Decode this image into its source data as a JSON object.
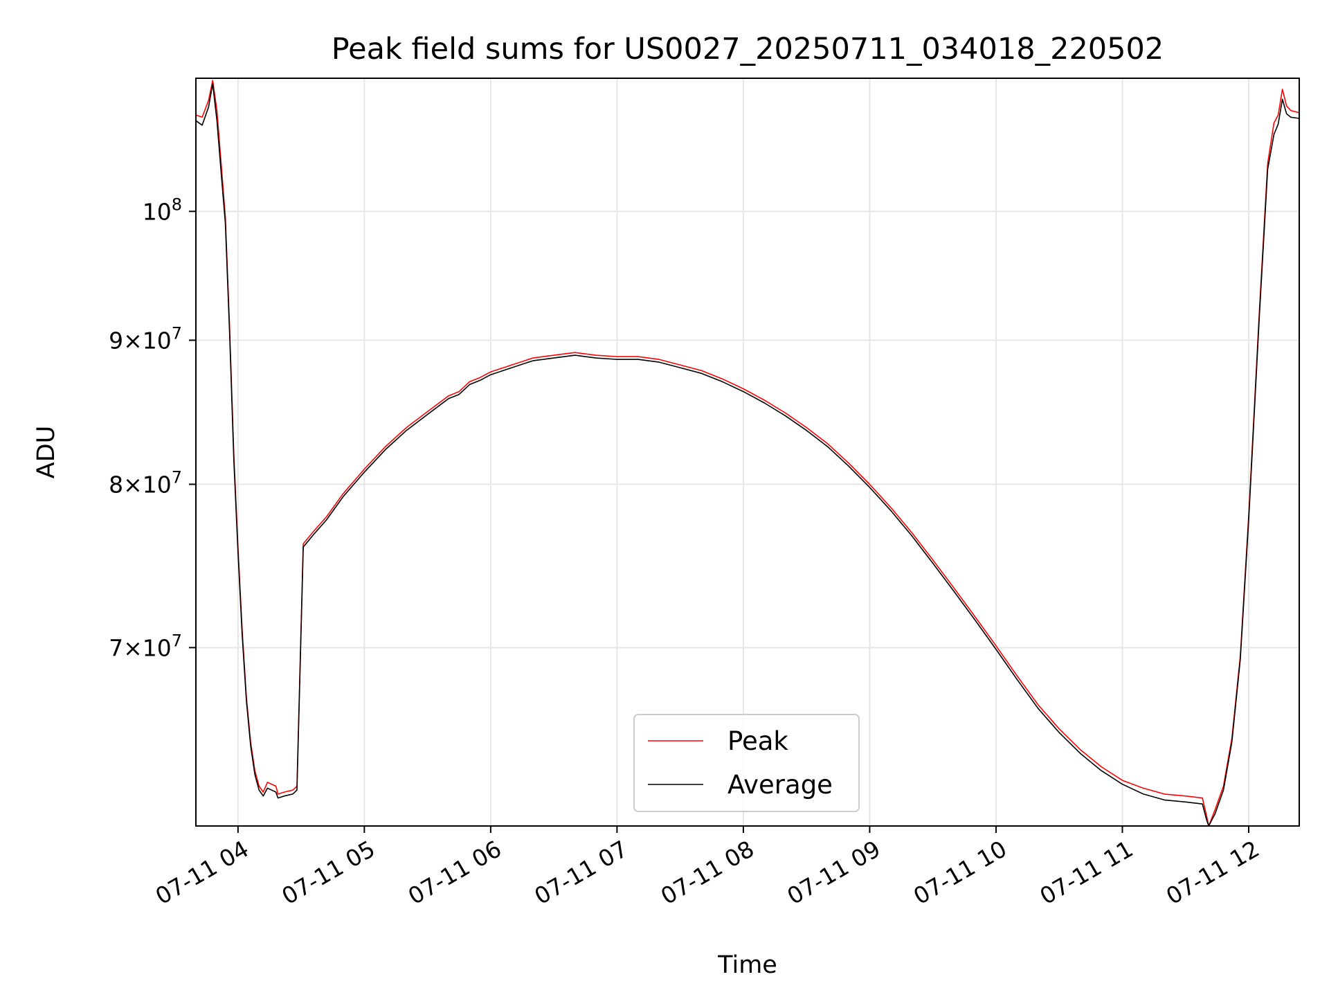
{
  "chart_data": {
    "type": "line",
    "title": "Peak field sums for US0027_20250711_034018_220502",
    "xlabel": "Time",
    "ylabel": "ADU",
    "y_scale": "log",
    "x_range": [
      "07-11 03:40",
      "07-11 12:24"
    ],
    "ylim": [
      60500000,
      111500000
    ],
    "grid": true,
    "legend_placement": "bottom-center",
    "x_ticks": [
      {
        "time": "07-11 04:00",
        "label": "07-11 04"
      },
      {
        "time": "07-11 05:00",
        "label": "07-11 05"
      },
      {
        "time": "07-11 06:00",
        "label": "07-11 06"
      },
      {
        "time": "07-11 07:00",
        "label": "07-11 07"
      },
      {
        "time": "07-11 08:00",
        "label": "07-11 08"
      },
      {
        "time": "07-11 09:00",
        "label": "07-11 09"
      },
      {
        "time": "07-11 10:00",
        "label": "07-11 10"
      },
      {
        "time": "07-11 11:00",
        "label": "07-11 11"
      },
      {
        "time": "07-11 12:00",
        "label": "07-11 12"
      }
    ],
    "y_ticks": [
      {
        "value": 70000000,
        "mantissa": "7",
        "base": "10",
        "exp": "7"
      },
      {
        "value": 80000000,
        "mantissa": "8",
        "base": "10",
        "exp": "7"
      },
      {
        "value": 90000000,
        "mantissa": "9",
        "base": "10",
        "exp": "7"
      },
      {
        "value": 100000000,
        "mantissa": "",
        "base": "10",
        "exp": "8"
      }
    ],
    "series": [
      {
        "name": "Peak",
        "color": "#ff0000",
        "points": [
          [
            "07-11 03:40",
            108200000
          ],
          [
            "07-11 03:43",
            108000000
          ],
          [
            "07-11 03:46",
            109500000
          ],
          [
            "07-11 03:48",
            111300000
          ],
          [
            "07-11 03:50",
            108600000
          ],
          [
            "07-11 03:52",
            104000000
          ],
          [
            "07-11 03:54",
            99500000
          ],
          [
            "07-11 03:56",
            91000000
          ],
          [
            "07-11 03:58",
            82000000
          ],
          [
            "07-11 04:00",
            76000000
          ],
          [
            "07-11 04:02",
            71000000
          ],
          [
            "07-11 04:04",
            67200000
          ],
          [
            "07-11 04:06",
            64800000
          ],
          [
            "07-11 04:08",
            63300000
          ],
          [
            "07-11 04:10",
            62500000
          ],
          [
            "07-11 04:12",
            62200000
          ],
          [
            "07-11 04:14",
            62700000
          ],
          [
            "07-11 04:16",
            62600000
          ],
          [
            "07-11 04:18",
            62500000
          ],
          [
            "07-11 04:19",
            62100000
          ],
          [
            "07-11 04:22",
            62200000
          ],
          [
            "07-11 04:26",
            62300000
          ],
          [
            "07-11 04:28",
            62500000
          ],
          [
            "07-11 04:31",
            76200000
          ],
          [
            "07-11 04:36",
            77000000
          ],
          [
            "07-11 04:42",
            77900000
          ],
          [
            "07-11 04:50",
            79400000
          ],
          [
            "07-11 05:00",
            81000000
          ],
          [
            "07-11 05:10",
            82500000
          ],
          [
            "07-11 05:20",
            83800000
          ],
          [
            "07-11 05:30",
            84900000
          ],
          [
            "07-11 05:40",
            86000000
          ],
          [
            "07-11 05:45",
            86300000
          ],
          [
            "07-11 05:50",
            87000000
          ],
          [
            "07-11 05:55",
            87300000
          ],
          [
            "07-11 06:00",
            87700000
          ],
          [
            "07-11 06:10",
            88200000
          ],
          [
            "07-11 06:20",
            88700000
          ],
          [
            "07-11 06:30",
            88900000
          ],
          [
            "07-11 06:40",
            89100000
          ],
          [
            "07-11 06:50",
            88900000
          ],
          [
            "07-11 07:00",
            88800000
          ],
          [
            "07-11 07:10",
            88800000
          ],
          [
            "07-11 07:20",
            88600000
          ],
          [
            "07-11 07:30",
            88200000
          ],
          [
            "07-11 07:40",
            87800000
          ],
          [
            "07-11 07:50",
            87200000
          ],
          [
            "07-11 08:00",
            86500000
          ],
          [
            "07-11 08:10",
            85700000
          ],
          [
            "07-11 08:20",
            84800000
          ],
          [
            "07-11 08:30",
            83800000
          ],
          [
            "07-11 08:40",
            82700000
          ],
          [
            "07-11 08:50",
            81400000
          ],
          [
            "07-11 09:00",
            80000000
          ],
          [
            "07-11 09:10",
            78500000
          ],
          [
            "07-11 09:20",
            76900000
          ],
          [
            "07-11 09:30",
            75200000
          ],
          [
            "07-11 09:40",
            73500000
          ],
          [
            "07-11 09:50",
            71800000
          ],
          [
            "07-11 10:00",
            70100000
          ],
          [
            "07-11 10:10",
            68400000
          ],
          [
            "07-11 10:20",
            66800000
          ],
          [
            "07-11 10:30",
            65500000
          ],
          [
            "07-11 10:40",
            64400000
          ],
          [
            "07-11 10:50",
            63500000
          ],
          [
            "07-11 11:00",
            62800000
          ],
          [
            "07-11 11:10",
            62400000
          ],
          [
            "07-11 11:20",
            62100000
          ],
          [
            "07-11 11:30",
            62000000
          ],
          [
            "07-11 11:38",
            61900000
          ],
          [
            "07-11 11:40",
            61000000
          ],
          [
            "07-11 11:41",
            60500000
          ],
          [
            "07-11 11:44",
            61300000
          ],
          [
            "07-11 11:48",
            62500000
          ],
          [
            "07-11 11:52",
            65000000
          ],
          [
            "07-11 11:56",
            69500000
          ],
          [
            "07-11 12:00",
            78000000
          ],
          [
            "07-11 12:05",
            92000000
          ],
          [
            "07-11 12:09",
            104000000
          ],
          [
            "07-11 12:12",
            107500000
          ],
          [
            "07-11 12:14",
            108200000
          ],
          [
            "07-11 12:16",
            110500000
          ],
          [
            "07-11 12:18",
            109000000
          ],
          [
            "07-11 12:20",
            108600000
          ],
          [
            "07-11 12:24",
            108400000
          ]
        ]
      },
      {
        "name": "Average",
        "color": "#000000",
        "points": [
          [
            "07-11 03:40",
            107700000
          ],
          [
            "07-11 03:43",
            107300000
          ],
          [
            "07-11 03:46",
            108900000
          ],
          [
            "07-11 03:48",
            111000000
          ],
          [
            "07-11 03:50",
            107700000
          ],
          [
            "07-11 03:52",
            103200000
          ],
          [
            "07-11 03:54",
            99000000
          ],
          [
            "07-11 03:56",
            90500000
          ],
          [
            "07-11 03:58",
            81600000
          ],
          [
            "07-11 04:00",
            75700000
          ],
          [
            "07-11 04:02",
            70700000
          ],
          [
            "07-11 04:04",
            67000000
          ],
          [
            "07-11 04:06",
            64600000
          ],
          [
            "07-11 04:08",
            63100000
          ],
          [
            "07-11 04:10",
            62300000
          ],
          [
            "07-11 04:12",
            62000000
          ],
          [
            "07-11 04:14",
            62400000
          ],
          [
            "07-11 04:16",
            62300000
          ],
          [
            "07-11 04:18",
            62200000
          ],
          [
            "07-11 04:19",
            61900000
          ],
          [
            "07-11 04:22",
            62000000
          ],
          [
            "07-11 04:26",
            62100000
          ],
          [
            "07-11 04:28",
            62300000
          ],
          [
            "07-11 04:31",
            76000000
          ],
          [
            "07-11 04:36",
            76800000
          ],
          [
            "07-11 04:42",
            77700000
          ],
          [
            "07-11 04:50",
            79200000
          ],
          [
            "07-11 05:00",
            80800000
          ],
          [
            "07-11 05:10",
            82300000
          ],
          [
            "07-11 05:20",
            83600000
          ],
          [
            "07-11 05:30",
            84700000
          ],
          [
            "07-11 05:40",
            85800000
          ],
          [
            "07-11 05:45",
            86100000
          ],
          [
            "07-11 05:50",
            86800000
          ],
          [
            "07-11 05:55",
            87100000
          ],
          [
            "07-11 06:00",
            87500000
          ],
          [
            "07-11 06:10",
            88000000
          ],
          [
            "07-11 06:20",
            88500000
          ],
          [
            "07-11 06:30",
            88700000
          ],
          [
            "07-11 06:40",
            88900000
          ],
          [
            "07-11 06:50",
            88700000
          ],
          [
            "07-11 07:00",
            88600000
          ],
          [
            "07-11 07:10",
            88600000
          ],
          [
            "07-11 07:20",
            88400000
          ],
          [
            "07-11 07:30",
            88000000
          ],
          [
            "07-11 07:40",
            87600000
          ],
          [
            "07-11 07:50",
            87000000
          ],
          [
            "07-11 08:00",
            86300000
          ],
          [
            "07-11 08:10",
            85500000
          ],
          [
            "07-11 08:20",
            84600000
          ],
          [
            "07-11 08:30",
            83600000
          ],
          [
            "07-11 08:40",
            82500000
          ],
          [
            "07-11 08:50",
            81200000
          ],
          [
            "07-11 09:00",
            79800000
          ],
          [
            "07-11 09:10",
            78300000
          ],
          [
            "07-11 09:20",
            76700000
          ],
          [
            "07-11 09:30",
            75000000
          ],
          [
            "07-11 09:40",
            73300000
          ],
          [
            "07-11 09:50",
            71600000
          ],
          [
            "07-11 10:00",
            69900000
          ],
          [
            "07-11 10:10",
            68200000
          ],
          [
            "07-11 10:20",
            66600000
          ],
          [
            "07-11 10:30",
            65300000
          ],
          [
            "07-11 10:40",
            64200000
          ],
          [
            "07-11 10:50",
            63300000
          ],
          [
            "07-11 11:00",
            62600000
          ],
          [
            "07-11 11:10",
            62100000
          ],
          [
            "07-11 11:20",
            61800000
          ],
          [
            "07-11 11:30",
            61700000
          ],
          [
            "07-11 11:38",
            61600000
          ],
          [
            "07-11 11:40",
            60800000
          ],
          [
            "07-11 11:41",
            60500000
          ],
          [
            "07-11 11:44",
            61100000
          ],
          [
            "07-11 11:48",
            62300000
          ],
          [
            "07-11 11:52",
            64800000
          ],
          [
            "07-11 11:56",
            69300000
          ],
          [
            "07-11 12:00",
            77700000
          ],
          [
            "07-11 12:05",
            91600000
          ],
          [
            "07-11 12:09",
            103500000
          ],
          [
            "07-11 12:12",
            106500000
          ],
          [
            "07-11 12:14",
            107400000
          ],
          [
            "07-11 12:16",
            109600000
          ],
          [
            "07-11 12:18",
            108300000
          ],
          [
            "07-11 12:20",
            108000000
          ],
          [
            "07-11 12:24",
            107900000
          ]
        ]
      }
    ]
  }
}
